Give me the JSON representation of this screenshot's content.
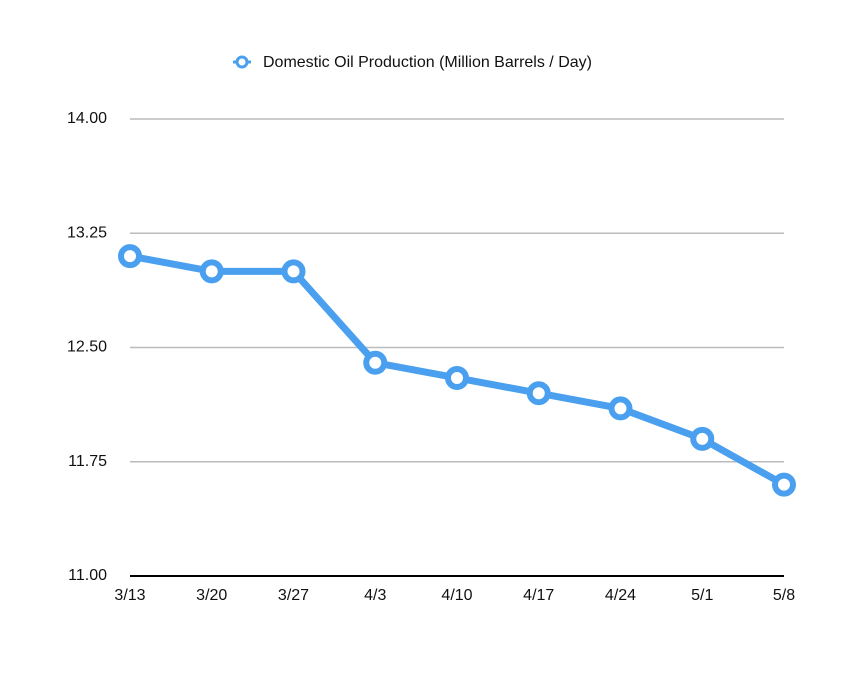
{
  "chart_data": {
    "type": "line",
    "categories": [
      "3/13",
      "3/20",
      "3/27",
      "4/3",
      "4/10",
      "4/17",
      "4/24",
      "5/1",
      "5/8"
    ],
    "series": [
      {
        "name": "Domestic Oil Production (Million Barrels / Day)",
        "color": "#4aa0ef",
        "values": [
          13.1,
          13.0,
          13.0,
          12.4,
          12.3,
          12.2,
          12.1,
          11.9,
          11.6
        ]
      }
    ],
    "ylim": [
      11,
      14
    ],
    "yticks": [
      {
        "value": 11,
        "label": "11.00"
      },
      {
        "value": 11.75,
        "label": "11.75"
      },
      {
        "value": 12.5,
        "label": "12.50"
      },
      {
        "value": 13.25,
        "label": "13.25"
      },
      {
        "value": 14,
        "label": "14.00"
      }
    ],
    "grid": true,
    "legend": "top"
  }
}
